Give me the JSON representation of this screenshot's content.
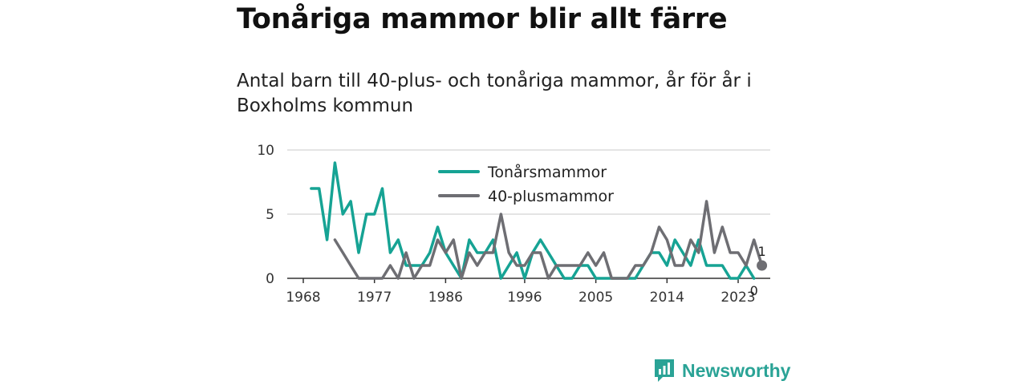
{
  "title": "Tonåriga mammor blir allt färre",
  "subtitle": "Antal barn till 40-plus- och tonåriga mammor, år för år i Boxholms kommun",
  "brand": {
    "name": "Newsworthy",
    "color": "#2aa396"
  },
  "colors": {
    "teal": "#16a394",
    "grey": "#6e6e73",
    "grid": "#dcdcdc",
    "axis": "#333333"
  },
  "chart_data": {
    "type": "line",
    "x_start": 1969,
    "x_ticks": [
      1968,
      1977,
      1986,
      1996,
      2005,
      2014,
      2023
    ],
    "y_ticks": [
      0,
      5,
      10
    ],
    "ylim": [
      0,
      10
    ],
    "xlim": [
      1968,
      2026
    ],
    "grid": true,
    "legend_placement": "top-center",
    "series": [
      {
        "name": "Tonårsmammor",
        "color": "#16a394",
        "values": [
          7,
          7,
          3,
          9,
          5,
          6,
          2,
          5,
          5,
          7,
          2,
          3,
          1,
          1,
          1,
          2,
          4,
          2,
          1,
          0,
          3,
          2,
          2,
          3,
          0,
          1,
          2,
          0,
          2,
          3,
          2,
          1,
          0,
          0,
          1,
          1,
          0,
          0,
          0,
          0,
          0,
          0,
          1,
          2,
          2,
          1,
          3,
          2,
          1,
          3,
          1,
          1,
          1,
          0,
          0,
          1,
          0
        ],
        "end_label": "0"
      },
      {
        "name": "40-plusmammor",
        "color": "#6e6e73",
        "start_year": 1972,
        "values": [
          3,
          2,
          1,
          0,
          0,
          0,
          0,
          1,
          0,
          2,
          0,
          1,
          1,
          3,
          2,
          3,
          0,
          2,
          1,
          2,
          2,
          5,
          2,
          1,
          1,
          2,
          2,
          0,
          1,
          1,
          1,
          1,
          2,
          1,
          2,
          0,
          0,
          0,
          1,
          1,
          2,
          4,
          3,
          1,
          1,
          3,
          2,
          6,
          2,
          4,
          2,
          2,
          1,
          3,
          1
        ],
        "end_label": "1"
      }
    ]
  }
}
